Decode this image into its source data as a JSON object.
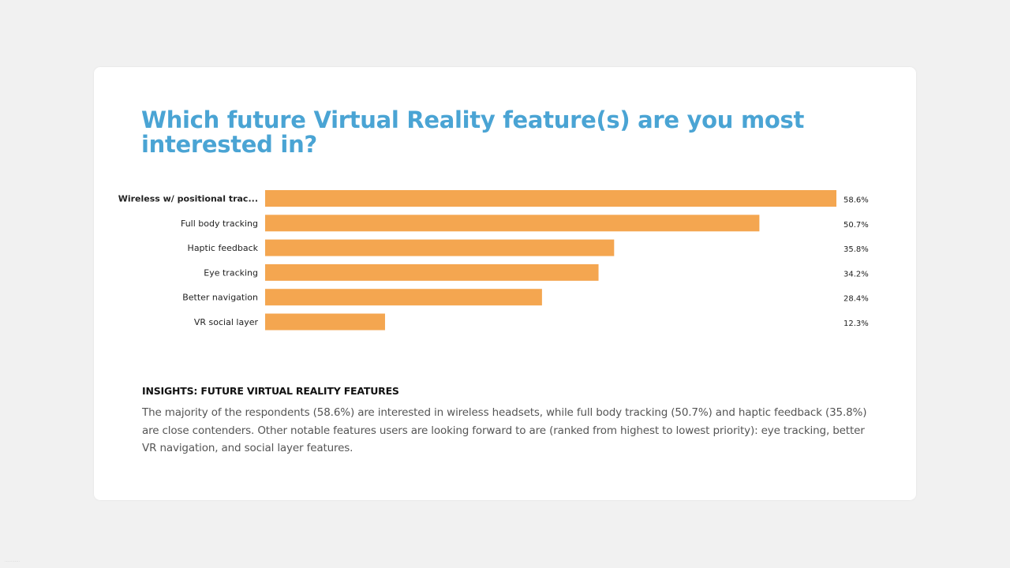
{
  "chart_data": {
    "type": "bar",
    "orientation": "horizontal",
    "title": "Which future Virtual Reality feature(s) are you most interested in?",
    "categories": [
      "Wireless w/ positional trac...",
      "Full body tracking",
      "Haptic feedback",
      "Eye tracking",
      "Better navigation",
      "VR social layer"
    ],
    "values": [
      58.6,
      50.7,
      35.8,
      34.2,
      28.4,
      12.3
    ],
    "value_labels": [
      "58.6%",
      "50.7%",
      "35.8%",
      "34.2%",
      "28.4%",
      "12.3%"
    ],
    "unit": "%",
    "xlim": [
      0,
      58.6
    ],
    "bar_color": "#f4a650",
    "grid": false,
    "legend": "none"
  },
  "insights": {
    "heading": "INSIGHTS: FUTURE VIRTUAL REALITY FEATURES",
    "body": "The majority of the respondents (58.6%) are interested in wireless headsets, while full body tracking (50.7%) and haptic feedback (35.8%) are close contenders. Other notable features users are looking forward to are (ranked from highest to lowest priority): eye tracking, better VR navigation, and social layer features."
  },
  "colors": {
    "title": "#4aa4d4",
    "bar": "#f4a650",
    "background": "#f1f1f1",
    "card": "#ffffff"
  }
}
